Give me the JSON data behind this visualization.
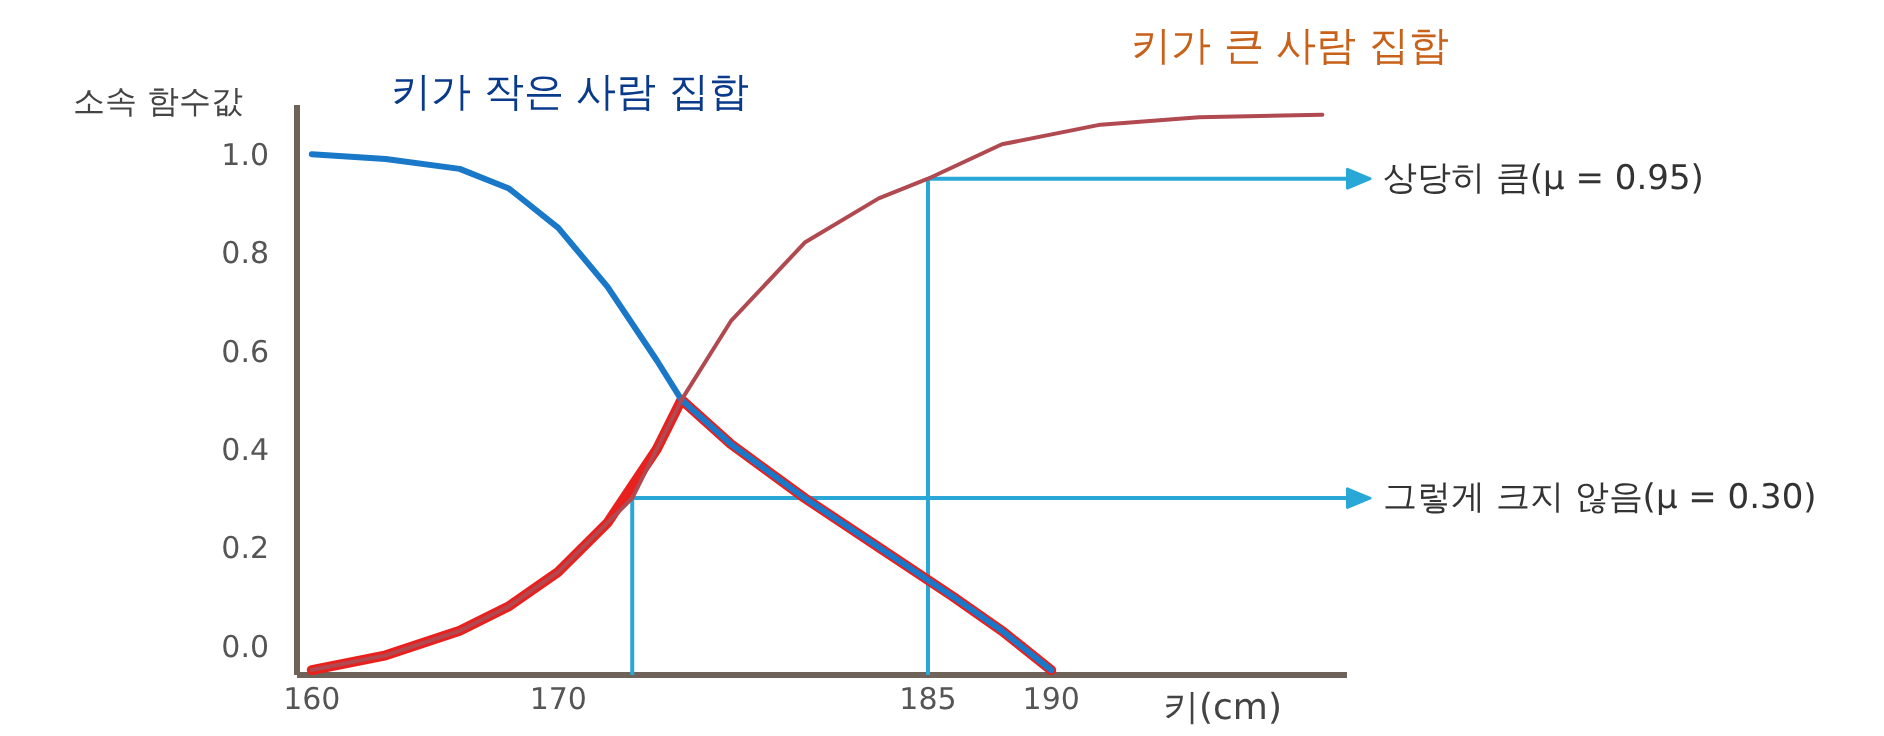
{
  "chart_data": {
    "type": "line",
    "ylabel": "소속 함수값",
    "xlabel": "키(cm)",
    "xlim": [
      159.4,
      202
    ],
    "xticks": [
      160,
      170,
      185,
      190
    ],
    "ylim": [
      -0.06,
      1.1
    ],
    "yticks": [
      {
        "value": 0,
        "label": "0.0"
      },
      {
        "value": 0.2,
        "label": "0.2"
      },
      {
        "value": 0.4,
        "label": "0.4"
      },
      {
        "value": 0.6,
        "label": "0.6"
      },
      {
        "value": 0.8,
        "label": "0.8"
      },
      {
        "value": 1,
        "label": "1.0"
      }
    ],
    "grid": false,
    "marker": "none",
    "line_style": "solid",
    "series": [
      {
        "name": "키가 작은 사람 집합",
        "color": "#1a78c8",
        "x": [
          160,
          163,
          166,
          168,
          170,
          172,
          174,
          175,
          177,
          180,
          183,
          186,
          188,
          190
        ],
        "values": [
          1.0,
          0.99,
          0.97,
          0.93,
          0.85,
          0.73,
          0.58,
          0.5,
          0.41,
          0.3,
          0.2,
          0.1,
          0.03,
          -0.05
        ]
      },
      {
        "name": "키가 큰 사람 집합",
        "color": "#b04a50",
        "x": [
          160,
          163,
          166,
          168,
          170,
          172,
          173,
          175,
          177,
          180,
          183,
          185,
          188,
          192,
          196,
          201
        ],
        "values": [
          -0.05,
          -0.02,
          0.03,
          0.08,
          0.15,
          0.25,
          0.3,
          0.5,
          0.66,
          0.82,
          0.91,
          0.95,
          1.02,
          1.06,
          1.075,
          1.08
        ]
      },
      {
        "color": "#e8201e",
        "x": [
          160,
          163,
          166,
          168,
          170,
          172,
          174,
          175,
          177,
          180,
          183,
          186,
          188,
          190
        ],
        "values": [
          -0.05,
          -0.02,
          0.03,
          0.08,
          0.15,
          0.25,
          0.4,
          0.5,
          0.41,
          0.3,
          0.2,
          0.1,
          0.03,
          -0.05
        ]
      }
    ],
    "ref_lines": [
      {
        "axis": "x",
        "value": 185,
        "color": "#29a8d8"
      },
      {
        "axis": "x",
        "value": 173,
        "color": "#29a8d8"
      }
    ],
    "annotations": [
      {
        "text": "상당히 큼(μ = 0.95)",
        "x": 185,
        "y": 0.95
      },
      {
        "text": "그렇게 크지 않음(μ = 0.30)",
        "x": 173,
        "y": 0.3
      }
    ]
  }
}
